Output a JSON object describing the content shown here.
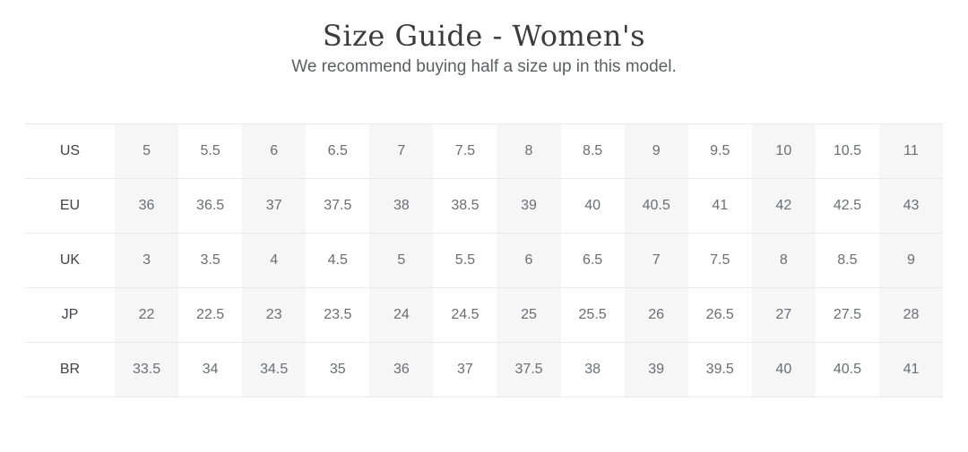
{
  "header": {
    "title": "Size Guide - Women's",
    "subtitle": "We recommend buying half a size up in this model."
  },
  "table": {
    "rows": [
      {
        "label": "US",
        "values": [
          "5",
          "5.5",
          "6",
          "6.5",
          "7",
          "7.5",
          "8",
          "8.5",
          "9",
          "9.5",
          "10",
          "10.5",
          "11"
        ]
      },
      {
        "label": "EU",
        "values": [
          "36",
          "36.5",
          "37",
          "37.5",
          "38",
          "38.5",
          "39",
          "40",
          "40.5",
          "41",
          "42",
          "42.5",
          "43"
        ]
      },
      {
        "label": "UK",
        "values": [
          "3",
          "3.5",
          "4",
          "4.5",
          "5",
          "5.5",
          "6",
          "6.5",
          "7",
          "7.5",
          "8",
          "8.5",
          "9"
        ]
      },
      {
        "label": "JP",
        "values": [
          "22",
          "22.5",
          "23",
          "23.5",
          "24",
          "24.5",
          "25",
          "25.5",
          "26",
          "26.5",
          "27",
          "27.5",
          "28"
        ]
      },
      {
        "label": "BR",
        "values": [
          "33.5",
          "34",
          "34.5",
          "35",
          "36",
          "37",
          "37.5",
          "38",
          "39",
          "39.5",
          "40",
          "40.5",
          "41"
        ]
      }
    ]
  },
  "colors": {
    "title_text": "#3b3b3b",
    "subtitle_text": "#5c5e62",
    "label_text": "#3f4145",
    "value_text": "#6b6d70",
    "stripe_bg": "#f6f6f6",
    "row_border": "#e9e9e9",
    "page_bg": "#ffffff"
  }
}
